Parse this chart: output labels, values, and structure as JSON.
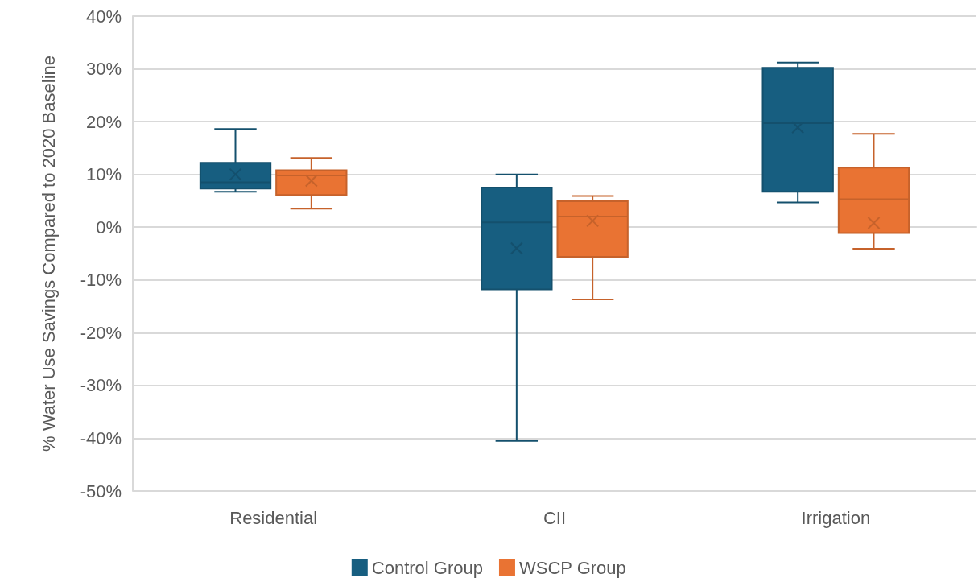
{
  "chart_data": {
    "type": "box",
    "ylabel": "% Water Use Savings Compared to 2020 Baseline",
    "categories": [
      "Residential",
      "CII",
      "Irrigation"
    ],
    "ylim": [
      -50,
      40
    ],
    "yticks": [
      {
        "value": -50,
        "label": "-50%"
      },
      {
        "value": -40,
        "label": "-40%"
      },
      {
        "value": -30,
        "label": "-30%"
      },
      {
        "value": -20,
        "label": "-20%"
      },
      {
        "value": -10,
        "label": "-10%"
      },
      {
        "value": 0,
        "label": "0%"
      },
      {
        "value": 10,
        "label": "10%"
      },
      {
        "value": 20,
        "label": "20%"
      },
      {
        "value": 30,
        "label": "30%"
      },
      {
        "value": 40,
        "label": "40%"
      }
    ],
    "grid": "y",
    "legend": "bottom",
    "series": [
      {
        "name": "Control Group",
        "color": "#175e80",
        "boxes": [
          {
            "low": 6.7,
            "q1": 7.3,
            "median": 8.5,
            "q3": 12.2,
            "high": 18.6,
            "mean": 10.0
          },
          {
            "low": -40.5,
            "q1": -11.8,
            "median": 0.9,
            "q3": 7.5,
            "high": 10.0,
            "mean": -4.0
          },
          {
            "low": 4.7,
            "q1": 6.7,
            "median": 19.7,
            "q3": 30.2,
            "high": 31.2,
            "mean": 18.9
          }
        ]
      },
      {
        "name": "WSCP Group",
        "color": "#e97333",
        "boxes": [
          {
            "low": 3.5,
            "q1": 6.1,
            "median": 9.8,
            "q3": 10.8,
            "high": 13.1,
            "mean": 8.8
          },
          {
            "low": -13.7,
            "q1": -5.6,
            "median": 2.0,
            "q3": 4.9,
            "high": 5.9,
            "mean": 1.2
          },
          {
            "low": -4.1,
            "q1": -1.1,
            "median": 5.3,
            "q3": 11.3,
            "high": 17.7,
            "mean": 0.8
          }
        ]
      }
    ]
  }
}
